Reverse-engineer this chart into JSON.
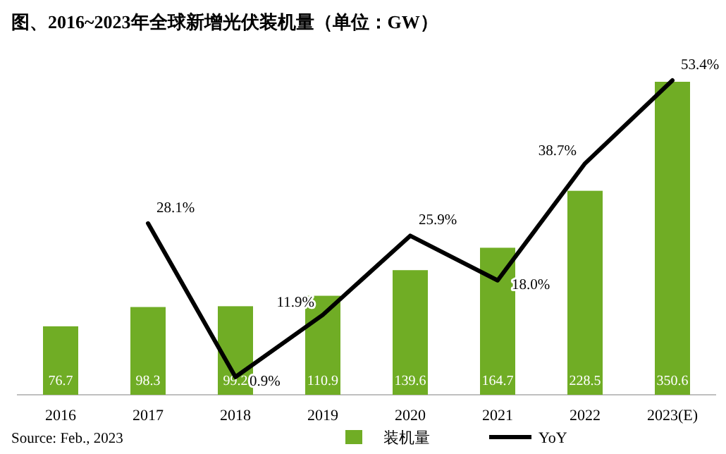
{
  "chart_data": {
    "type": "bar",
    "title": "图、2016~2023年全球新增光伏装机量（单位：GW）",
    "categories": [
      "2016",
      "2017",
      "2018",
      "2019",
      "2020",
      "2021",
      "2022",
      "2023(E)"
    ],
    "series": [
      {
        "name": "装机量",
        "color": "#70ad25",
        "values": [
          76.7,
          98.3,
          99.2,
          110.9,
          139.6,
          164.7,
          228.5,
          350.6
        ],
        "value_labels": [
          "76.7",
          "98.3",
          "99.2",
          "110.9",
          "139.6",
          "164.7",
          "228.5",
          "350.6"
        ]
      },
      {
        "name": "YoY",
        "type": "line",
        "axis": "y2",
        "color": "#000000",
        "values": [
          null,
          28.1,
          0.9,
          11.9,
          25.9,
          18.0,
          38.7,
          53.4
        ],
        "value_labels": [
          null,
          "28.1%",
          "0.9%",
          "11.9%",
          "25.9%",
          "18.0%",
          "38.7%",
          "53.4%"
        ]
      }
    ],
    "legend": "bottom",
    "annotations": [
      "Source: Feb., 2023"
    ]
  }
}
